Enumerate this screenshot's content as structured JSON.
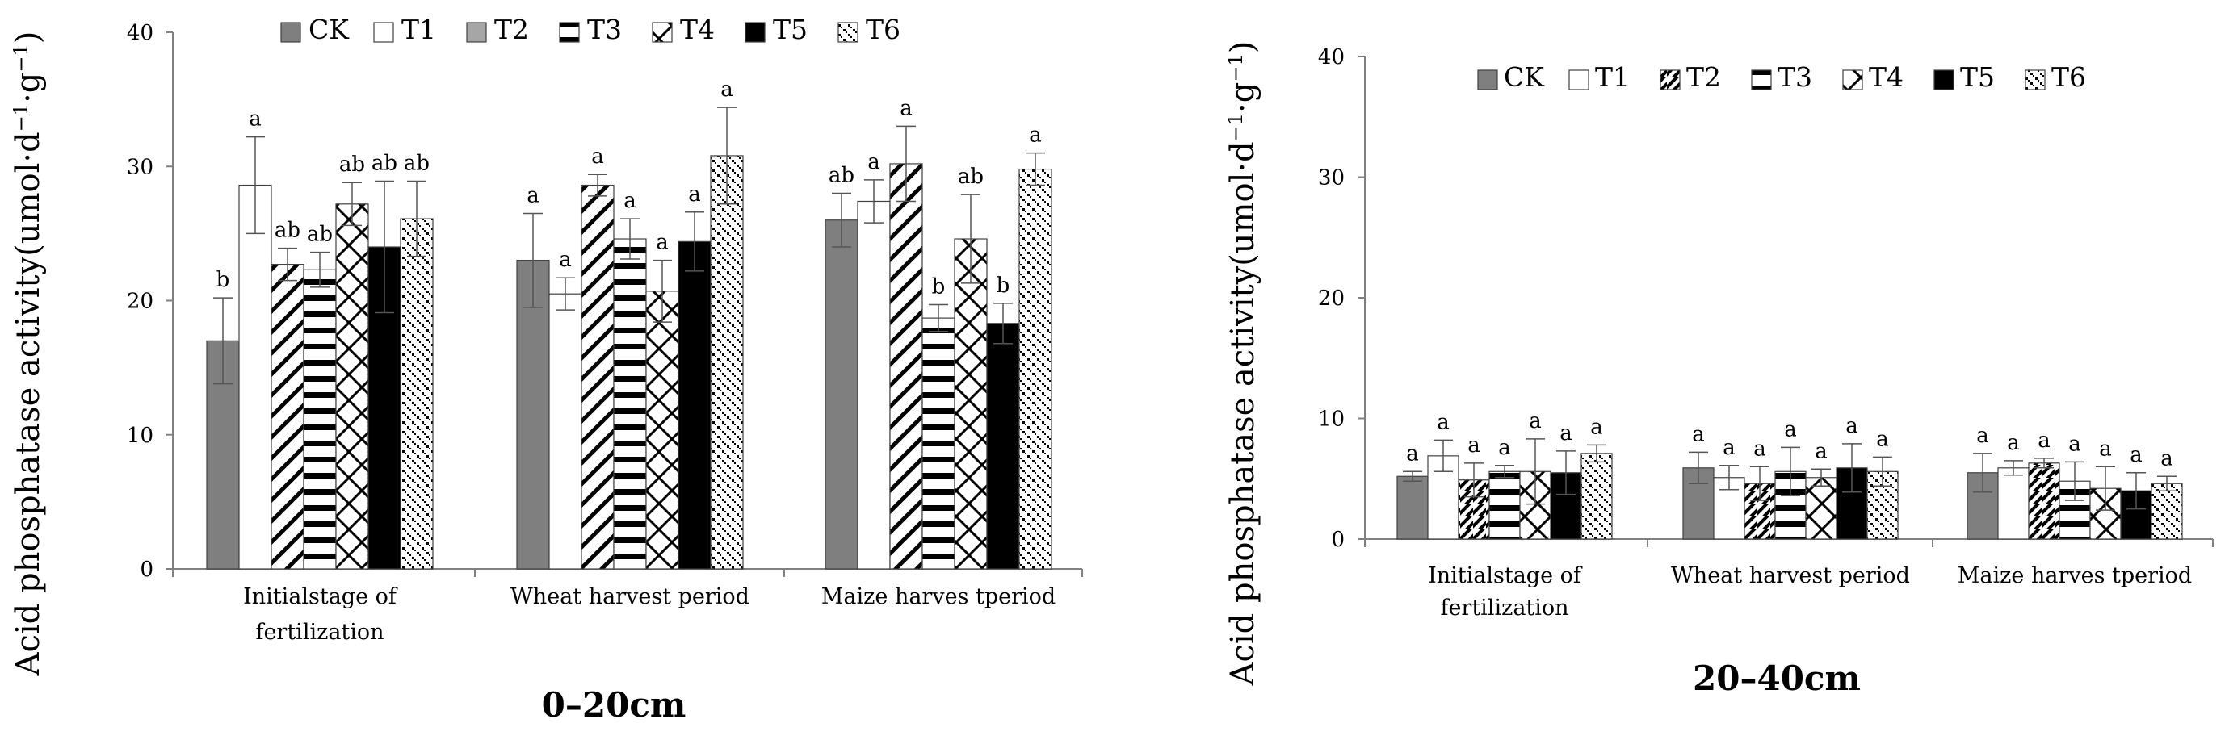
{
  "chart_data": [
    {
      "type": "bar",
      "title": "0–20cm",
      "ylabel": "Acid phosphatase activity(umol·d⁻¹·g⁻¹)",
      "ylim": [
        0,
        40
      ],
      "yticks": [
        "0",
        "10",
        "20",
        "30",
        "40"
      ],
      "categories": [
        [
          "Initialstage of",
          "fertilization"
        ],
        [
          "Wheat harvest period"
        ],
        [
          "Maize harves tperiod"
        ]
      ],
      "series": [
        {
          "name": "CK",
          "values": [
            17.0,
            23.0,
            26.0
          ],
          "errors": [
            3.2,
            3.5,
            2.0
          ],
          "labels": [
            "b",
            "a",
            "ab"
          ]
        },
        {
          "name": "T1",
          "values": [
            28.6,
            20.5,
            27.4
          ],
          "errors": [
            3.6,
            1.2,
            1.6
          ],
          "labels": [
            "a",
            "a",
            "a"
          ]
        },
        {
          "name": "T2",
          "values": [
            22.7,
            28.6,
            30.2
          ],
          "errors": [
            1.2,
            0.8,
            2.8
          ],
          "labels": [
            "ab",
            "a",
            "a"
          ]
        },
        {
          "name": "T3",
          "values": [
            22.3,
            24.6,
            18.7
          ],
          "errors": [
            1.3,
            1.5,
            1.0
          ],
          "labels": [
            "ab",
            "a",
            "b"
          ]
        },
        {
          "name": "T4",
          "values": [
            27.2,
            20.7,
            24.6
          ],
          "errors": [
            1.6,
            2.3,
            3.3
          ],
          "labels": [
            "ab",
            "a",
            "ab"
          ]
        },
        {
          "name": "T5",
          "values": [
            24.0,
            24.4,
            18.3
          ],
          "errors": [
            4.9,
            2.2,
            1.5
          ],
          "labels": [
            "ab",
            "a",
            "b"
          ]
        },
        {
          "name": "T6",
          "values": [
            26.1,
            30.8,
            29.8
          ],
          "errors": [
            2.8,
            3.6,
            1.2
          ],
          "labels": [
            "ab",
            "a",
            "a"
          ]
        }
      ]
    },
    {
      "type": "bar",
      "title": "20–40cm",
      "ylabel": "Acid phosphatase activity(umol·d⁻¹·g⁻¹)",
      "ylim": [
        0,
        40
      ],
      "yticks": [
        "0",
        "10",
        "20",
        "30",
        "40"
      ],
      "categories": [
        [
          "Initialstage of",
          "fertilization"
        ],
        [
          "Wheat harvest period"
        ],
        [
          "Maize harves tperiod"
        ]
      ],
      "series": [
        {
          "name": "CK",
          "values": [
            5.2,
            5.9,
            5.5
          ],
          "errors": [
            0.4,
            1.3,
            1.6
          ],
          "labels": [
            "a",
            "a",
            "a"
          ]
        },
        {
          "name": "T1",
          "values": [
            6.9,
            5.1,
            5.9
          ],
          "errors": [
            1.3,
            1.0,
            0.6
          ],
          "labels": [
            "a",
            "a",
            "a"
          ]
        },
        {
          "name": "T2",
          "values": [
            4.9,
            4.6,
            6.3
          ],
          "errors": [
            1.4,
            1.4,
            0.4
          ],
          "labels": [
            "a",
            "a",
            "a"
          ]
        },
        {
          "name": "T3",
          "values": [
            5.6,
            5.6,
            4.8
          ],
          "errors": [
            0.5,
            2.0,
            1.6
          ],
          "labels": [
            "a",
            "a",
            "a"
          ]
        },
        {
          "name": "T4",
          "values": [
            5.6,
            5.1,
            4.2
          ],
          "errors": [
            2.7,
            0.7,
            1.8
          ],
          "labels": [
            "a",
            "a",
            "a"
          ]
        },
        {
          "name": "T5",
          "values": [
            5.5,
            5.9,
            4.0
          ],
          "errors": [
            1.8,
            2.0,
            1.5
          ],
          "labels": [
            "a",
            "a",
            "a"
          ]
        },
        {
          "name": "T6",
          "values": [
            7.1,
            5.6,
            4.6
          ],
          "errors": [
            0.7,
            1.2,
            0.6
          ],
          "labels": [
            "a",
            "a",
            "a"
          ]
        }
      ]
    }
  ],
  "colors": {
    "CK": "#7f7f7f",
    "T1": "#ffffff",
    "T2": "#a6a6a6",
    "T3": "#ffffff",
    "T4": "#ffffff",
    "T5": "#000000",
    "T6": "#ffffff",
    "axis": "#808080",
    "outline": "#404040"
  }
}
